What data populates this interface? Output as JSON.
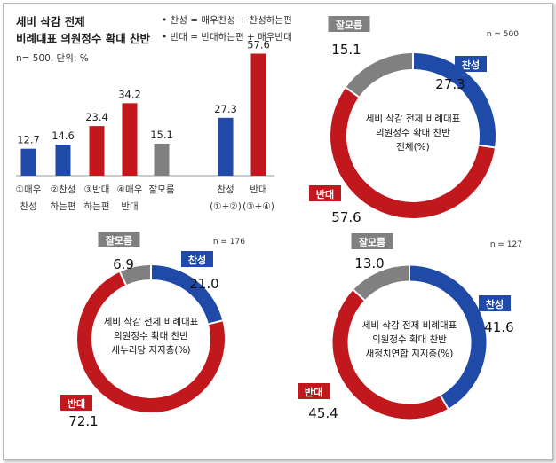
{
  "chart_data": [
    {
      "type": "bar",
      "title": "세비 삭감 전제 비례대표 의원정수 확대 찬반",
      "subtitle": "n= 500, 단위: %",
      "legend": [
        "• 찬성 = 매우찬성 + 찬성하는편",
        "• 반대 = 반대하는편 + 매우반대"
      ],
      "categories": [
        [
          "①매우",
          "찬성"
        ],
        [
          "②찬성",
          "하는편"
        ],
        [
          "③반대",
          "하는편"
        ],
        [
          "④매우",
          "반대"
        ],
        [
          "잘모름"
        ],
        [
          "찬성",
          "(①+②)"
        ],
        [
          "반대",
          "(③+④)"
        ]
      ],
      "values": [
        12.7,
        14.6,
        23.4,
        34.2,
        15.1,
        27.3,
        57.6
      ],
      "value_labels": [
        "12.7",
        "14.6",
        "23.4",
        "34.2",
        "15.1",
        "27.3",
        "57.6"
      ],
      "colors": [
        "#1f4aa8",
        "#1f4aa8",
        "#c0181d",
        "#c0181d",
        "#808080",
        "#1f4aa8",
        "#c0181d"
      ],
      "ylim": [
        0,
        62
      ]
    },
    {
      "type": "pie",
      "center_label": [
        "세비 삭감 전제 비례대표",
        "의원정수 확대 찬반",
        "전체(%)"
      ],
      "n_label": "n = 500",
      "slices": [
        {
          "name": "찬성",
          "value": 27.3,
          "label": "27.3",
          "color": "#1f4aa8"
        },
        {
          "name": "반대",
          "value": 57.6,
          "label": "57.6",
          "color": "#c0181d"
        },
        {
          "name": "잘모름",
          "value": 15.1,
          "label": "15.1",
          "color": "#808080"
        }
      ]
    },
    {
      "type": "pie",
      "center_label": [
        "세비 삭감 전제 비례대표",
        "의원정수 확대 찬반",
        "새누리당 지지층(%)"
      ],
      "n_label": "n = 176",
      "slices": [
        {
          "name": "찬성",
          "value": 21.0,
          "label": "21.0",
          "color": "#1f4aa8"
        },
        {
          "name": "반대",
          "value": 72.1,
          "label": "72.1",
          "color": "#c0181d"
        },
        {
          "name": "잘모름",
          "value": 6.9,
          "label": "6.9",
          "color": "#808080"
        }
      ]
    },
    {
      "type": "pie",
      "center_label": [
        "세비 삭감 전제 비례대표",
        "의원정수 확대 찬반",
        "새정치연합 지지층(%)"
      ],
      "n_label": "n = 127",
      "slices": [
        {
          "name": "찬성",
          "value": 41.6,
          "label": "41.6",
          "color": "#1f4aa8"
        },
        {
          "name": "반대",
          "value": 45.4,
          "label": "45.4",
          "color": "#c0181d"
        },
        {
          "name": "잘모름",
          "value": 13.0,
          "label": "13.0",
          "color": "#808080"
        }
      ]
    }
  ]
}
